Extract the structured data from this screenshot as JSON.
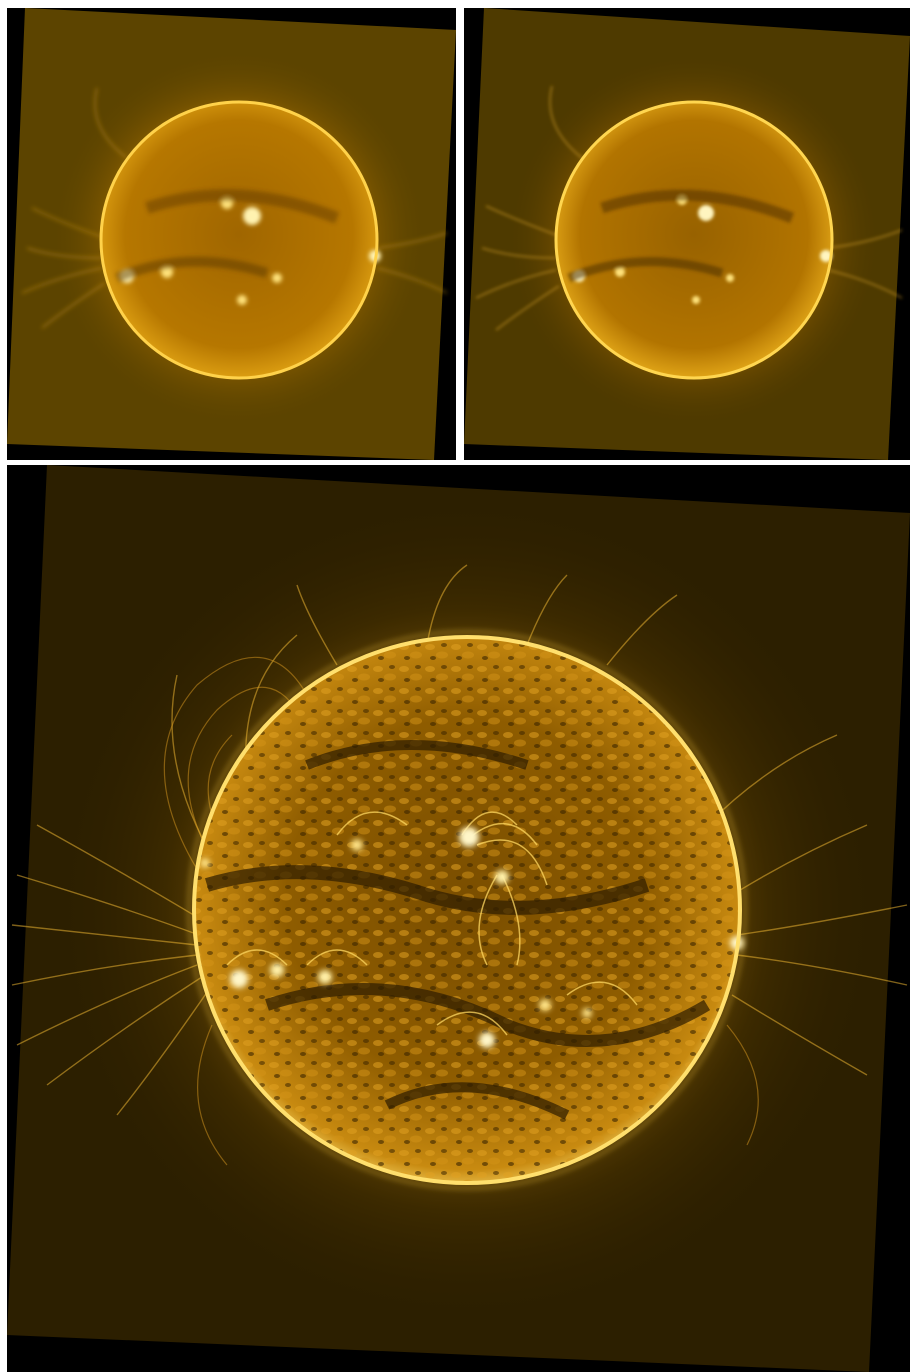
{
  "figure": {
    "panels": [
      {
        "id": "top-left",
        "content": "sun-disk-smoothed"
      },
      {
        "id": "top-right",
        "content": "sun-disk-enhanced"
      },
      {
        "id": "bottom",
        "content": "sun-disk-sharpened-large"
      }
    ],
    "colors": {
      "background": "#000000",
      "frame_fill_soft": "#5a4200",
      "frame_fill_dark": "#2a1d00",
      "disk_core": "#d08a00",
      "disk_mid": "#a66a00",
      "limb": "#ffd24a",
      "highlight": "#fff2b0",
      "separator": "#ffffff"
    }
  }
}
